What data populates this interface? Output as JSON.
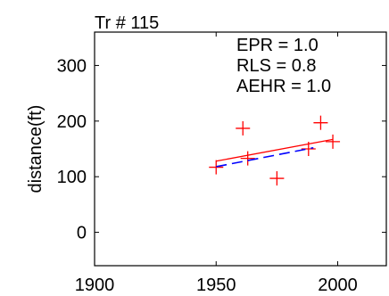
{
  "chart_data": {
    "type": "scatter",
    "title": "Tr # 115",
    "xlabel": "",
    "ylabel": "distance(ft)",
    "xlim": [
      1900,
      2020
    ],
    "ylim": [
      -60,
      360
    ],
    "xticks": [
      1900,
      1950,
      2000
    ],
    "yticks": [
      0,
      100,
      200,
      300
    ],
    "grid": false,
    "annotations": [
      "EPR = 1.0",
      "RLS = 0.8",
      "AEHR = 1.0"
    ],
    "series": [
      {
        "marker": "+",
        "color": "#ff0000",
        "points": [
          {
            "x": 1950,
            "y": 117
          },
          {
            "x": 1961,
            "y": 187
          },
          {
            "x": 1963,
            "y": 133
          },
          {
            "x": 1975,
            "y": 97
          },
          {
            "x": 1988,
            "y": 150
          },
          {
            "x": 1993,
            "y": 197
          },
          {
            "x": 1998,
            "y": 163
          }
        ]
      },
      {
        "style": "solid",
        "color": "#ff0000",
        "points": [
          {
            "x": 1950,
            "y": 128
          },
          {
            "x": 1998,
            "y": 167
          }
        ]
      },
      {
        "style": "dashed",
        "color": "#0000ff",
        "points": [
          {
            "x": 1950,
            "y": 118
          },
          {
            "x": 1990,
            "y": 152
          }
        ]
      }
    ]
  }
}
